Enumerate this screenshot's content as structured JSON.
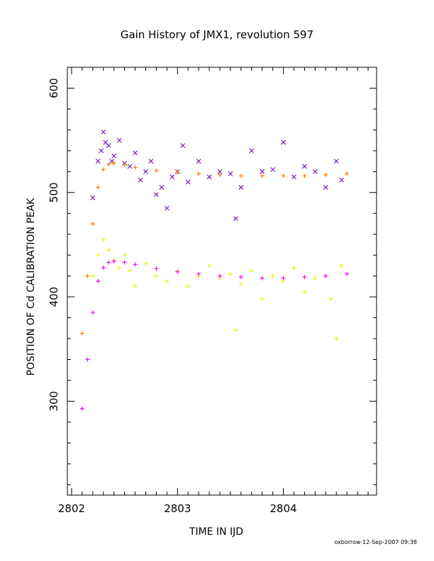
{
  "chart_data": {
    "type": "scatter",
    "title": "Gain History of JMX1, revolution 597",
    "xlabel": "TIME IN IJD",
    "ylabel": "POSITION OF Cd CALIBRATION PEAK",
    "xlim": [
      2801.96,
      2804.88
    ],
    "ylim": [
      210,
      620
    ],
    "xticks": [
      2802,
      2803,
      2804
    ],
    "yticks": [
      300,
      400,
      500,
      600
    ],
    "grid": false,
    "colors": {
      "purple_scatter": "#7a1fc2",
      "orange_fit": "#ff7a00",
      "yellow_scatter": "#f0f000",
      "magenta_fit": "#ff00ff"
    },
    "series": [
      {
        "marker": "x",
        "color": "#7a1fc2",
        "x": [
          2802.2,
          2802.25,
          2802.28,
          2802.3,
          2802.32,
          2802.35,
          2802.38,
          2802.4,
          2802.45,
          2802.5,
          2802.55,
          2802.6,
          2802.65,
          2802.7,
          2802.75,
          2802.8,
          2802.85,
          2802.9,
          2802.95,
          2803.0,
          2803.05,
          2803.1,
          2803.2,
          2803.3,
          2803.4,
          2803.5,
          2803.55,
          2803.6,
          2803.7,
          2803.8,
          2803.9,
          2804.0,
          2804.1,
          2804.2,
          2804.3,
          2804.4,
          2804.5,
          2804.55
        ],
        "y": [
          495,
          530,
          540,
          558,
          548,
          545,
          530,
          535,
          550,
          528,
          525,
          538,
          512,
          520,
          530,
          498,
          505,
          485,
          515,
          520,
          545,
          510,
          530,
          515,
          520,
          518,
          475,
          505,
          540,
          520,
          522,
          548,
          515,
          525,
          520,
          505,
          530,
          512
        ]
      },
      {
        "marker": "+",
        "color": "#ff7a00",
        "x": [
          2802.1,
          2802.15,
          2802.2,
          2802.25,
          2802.3,
          2802.35,
          2802.4,
          2802.5,
          2802.6,
          2802.8,
          2803.0,
          2803.2,
          2803.4,
          2803.6,
          2803.8,
          2804.0,
          2804.2,
          2804.4,
          2804.6
        ],
        "y": [
          365,
          420,
          470,
          505,
          522,
          527,
          528,
          527,
          524,
          521,
          519,
          518,
          517,
          516,
          516,
          516,
          516,
          517,
          518
        ]
      },
      {
        "marker": "+",
        "color": "#f0f000",
        "x": [
          2802.2,
          2802.25,
          2802.3,
          2802.35,
          2802.4,
          2802.45,
          2802.5,
          2802.55,
          2802.6,
          2802.7,
          2802.8,
          2802.9,
          2803.0,
          2803.1,
          2803.2,
          2803.3,
          2803.4,
          2803.5,
          2803.55,
          2803.6,
          2803.7,
          2803.8,
          2803.9,
          2804.0,
          2804.1,
          2804.2,
          2804.3,
          2804.4,
          2804.45,
          2804.5,
          2804.55
        ],
        "y": [
          420,
          440,
          455,
          445,
          435,
          428,
          440,
          425,
          410,
          432,
          420,
          415,
          425,
          410,
          420,
          430,
          418,
          422,
          368,
          412,
          425,
          398,
          420,
          415,
          428,
          405,
          418,
          420,
          398,
          360,
          430
        ]
      },
      {
        "marker": "+",
        "color": "#ff00ff",
        "x": [
          2802.1,
          2802.15,
          2802.2,
          2802.25,
          2802.3,
          2802.35,
          2802.4,
          2802.5,
          2802.6,
          2802.8,
          2803.0,
          2803.2,
          2803.4,
          2803.6,
          2803.8,
          2804.0,
          2804.2,
          2804.4,
          2804.6
        ],
        "y": [
          293,
          340,
          385,
          415,
          428,
          433,
          434,
          433,
          431,
          427,
          424,
          422,
          420,
          419,
          418,
          418,
          419,
          420,
          422
        ]
      }
    ]
  },
  "footer": "oxborrow 12-Sep-2007 09:38"
}
